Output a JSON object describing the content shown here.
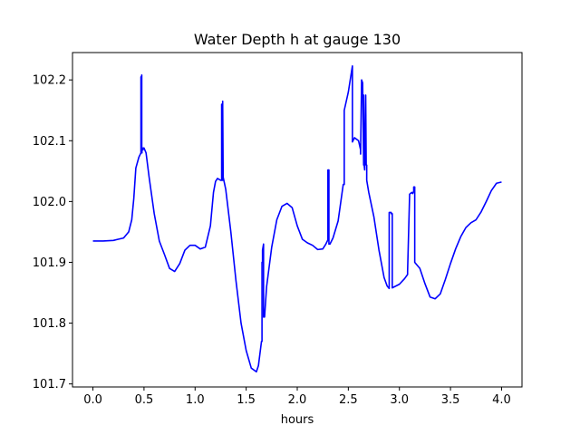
{
  "chart_data": {
    "type": "line",
    "title": "Water Depth h at gauge 130",
    "xlabel": "hours",
    "ylabel": "",
    "xlim": [
      -0.2,
      4.2
    ],
    "ylim": [
      101.695,
      102.245
    ],
    "xticks": [
      0.0,
      0.5,
      1.0,
      1.5,
      2.0,
      2.5,
      3.0,
      3.5,
      4.0
    ],
    "xtick_labels": [
      "0.0",
      "0.5",
      "1.0",
      "1.5",
      "2.0",
      "2.5",
      "3.0",
      "3.5",
      "4.0"
    ],
    "yticks": [
      101.7,
      101.8,
      101.9,
      102.0,
      102.1,
      102.2
    ],
    "ytick_labels": [
      "101.7",
      "101.8",
      "101.9",
      "102.0",
      "102.1",
      "102.2"
    ],
    "grid": false,
    "series": [
      {
        "color": "#0000ff",
        "x": [
          0.0,
          0.1,
          0.2,
          0.3,
          0.35,
          0.38,
          0.4,
          0.42,
          0.45,
          0.47,
          0.47,
          0.475,
          0.478,
          0.478,
          0.48,
          0.48,
          0.49,
          0.49,
          0.5,
          0.52,
          0.55,
          0.6,
          0.65,
          0.7,
          0.75,
          0.8,
          0.85,
          0.9,
          0.95,
          1.0,
          1.05,
          1.1,
          1.15,
          1.18,
          1.2,
          1.22,
          1.25,
          1.26,
          1.26,
          1.265,
          1.265,
          1.27,
          1.27,
          1.275,
          1.3,
          1.35,
          1.4,
          1.45,
          1.5,
          1.55,
          1.6,
          1.62,
          1.65,
          1.655,
          1.655,
          1.66,
          1.66,
          1.67,
          1.67,
          1.68,
          1.7,
          1.75,
          1.8,
          1.85,
          1.9,
          1.95,
          2.0,
          2.05,
          2.1,
          2.15,
          2.2,
          2.25,
          2.28,
          2.3,
          2.3,
          2.31,
          2.31,
          2.32,
          2.35,
          2.4,
          2.45,
          2.46,
          2.46,
          2.5,
          2.54,
          2.54,
          2.56,
          2.6,
          2.62,
          2.62,
          2.63,
          2.64,
          2.65,
          2.65,
          2.655,
          2.66,
          2.67,
          2.675,
          2.68,
          2.68,
          2.7,
          2.75,
          2.8,
          2.85,
          2.88,
          2.9,
          2.9,
          2.92,
          2.92,
          2.93,
          2.93,
          3.0,
          3.05,
          3.08,
          3.08,
          3.1,
          3.12,
          3.13,
          3.14,
          3.14,
          3.15,
          3.15,
          3.2,
          3.25,
          3.3,
          3.35,
          3.4,
          3.45,
          3.5,
          3.55,
          3.6,
          3.65,
          3.7,
          3.75,
          3.8,
          3.85,
          3.9,
          3.95,
          4.0
        ],
        "y": [
          101.935,
          101.935,
          101.936,
          101.94,
          101.95,
          101.97,
          102.005,
          102.055,
          102.073,
          102.08,
          102.205,
          102.205,
          102.208,
          102.08,
          102.08,
          102.085,
          102.085,
          102.088,
          102.088,
          102.08,
          102.04,
          101.98,
          101.935,
          101.913,
          101.89,
          101.885,
          101.898,
          101.92,
          101.928,
          101.928,
          101.922,
          101.925,
          101.96,
          102.015,
          102.033,
          102.038,
          102.035,
          102.035,
          102.16,
          102.16,
          102.035,
          102.035,
          102.165,
          102.04,
          102.02,
          101.95,
          101.87,
          101.8,
          101.755,
          101.726,
          101.72,
          101.73,
          101.77,
          101.77,
          101.9,
          101.9,
          101.92,
          101.93,
          101.81,
          101.81,
          101.86,
          101.925,
          101.97,
          101.992,
          101.997,
          101.99,
          101.96,
          101.938,
          101.932,
          101.928,
          101.921,
          101.922,
          101.93,
          101.937,
          102.052,
          102.052,
          101.93,
          101.93,
          101.94,
          101.968,
          102.028,
          102.028,
          102.15,
          102.18,
          102.223,
          102.098,
          102.105,
          102.1,
          102.085,
          102.078,
          102.2,
          102.195,
          102.06,
          102.175,
          102.06,
          102.052,
          102.175,
          102.06,
          102.06,
          102.035,
          102.015,
          101.975,
          101.92,
          101.875,
          101.861,
          101.857,
          101.982,
          101.982,
          101.98,
          101.98,
          101.858,
          101.864,
          101.873,
          101.88,
          101.885,
          102.012,
          102.015,
          102.013,
          102.017,
          102.024,
          102.024,
          101.9,
          101.89,
          101.865,
          101.843,
          101.84,
          101.848,
          101.872,
          101.898,
          101.922,
          101.942,
          101.957,
          101.965,
          101.97,
          101.983,
          102.0,
          102.018,
          102.03,
          102.032
        ]
      }
    ]
  }
}
